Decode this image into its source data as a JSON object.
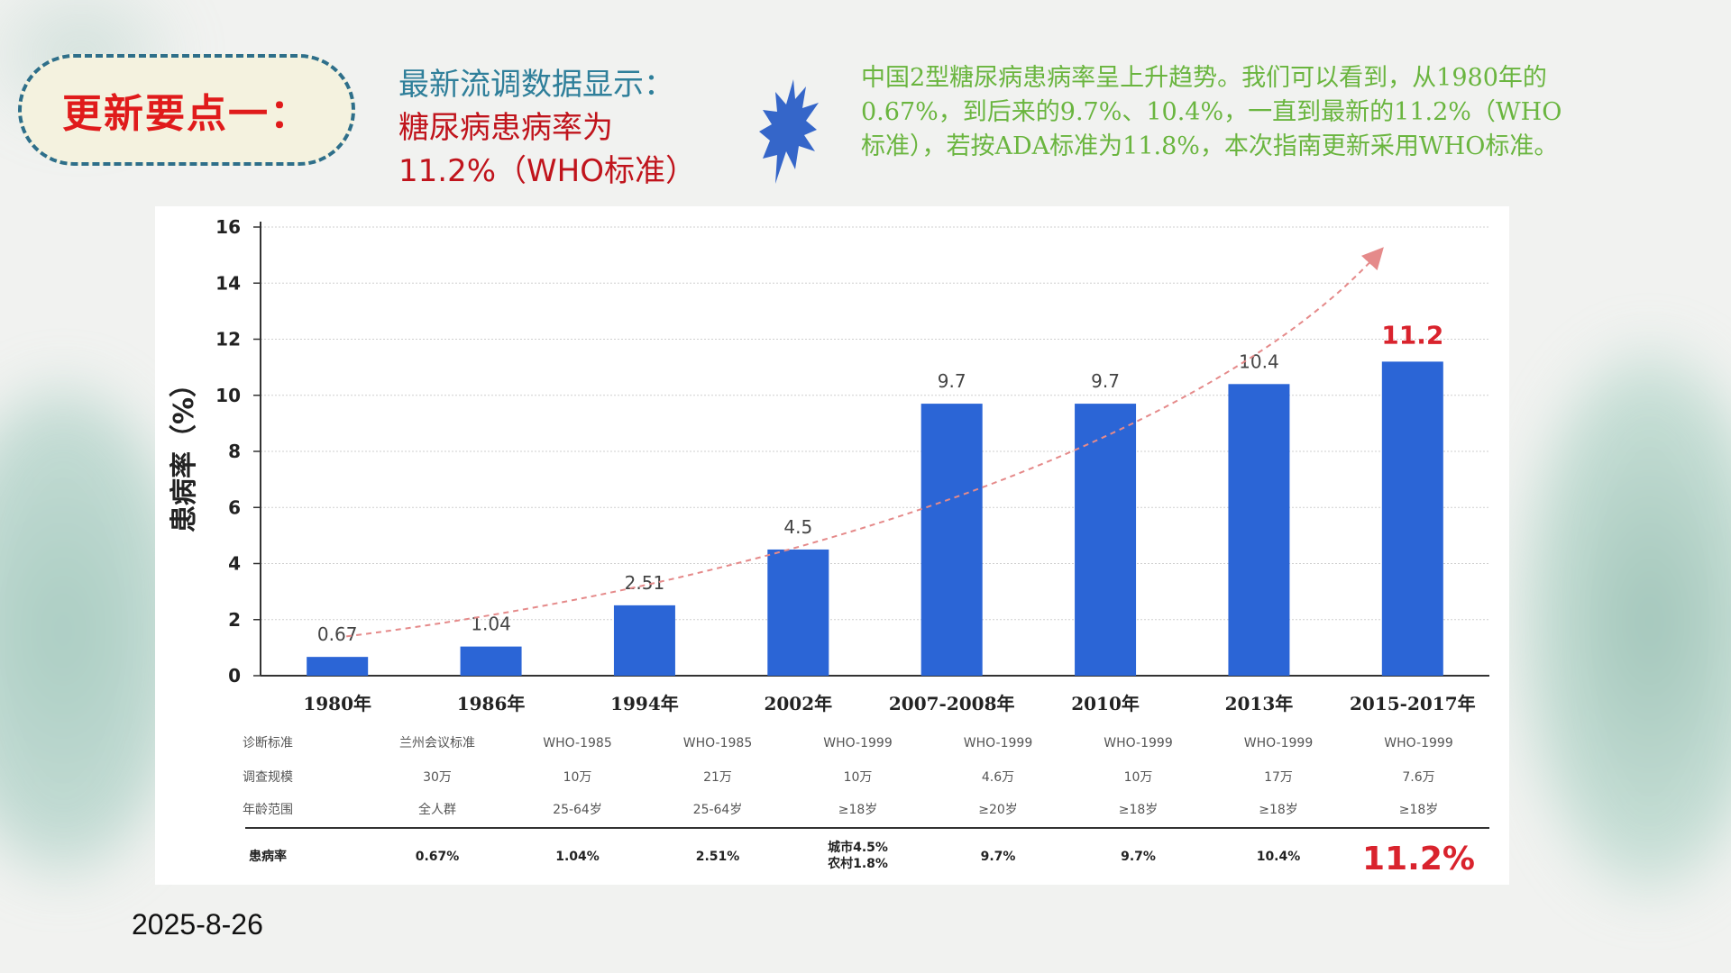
{
  "badge_text": "更新要点一：",
  "headline": {
    "line1": "最新流调数据显示：",
    "line2": "糖尿病患病率为",
    "line3": "11.2%（WHO标准）"
  },
  "description": "中国2型糖尿病患病率呈上升趋势。我们可以看到，从1980年的0.67%，到后来的9.7%、10.4%，一直到最新的11.2%（WHO标准），若按ADA标准为11.8%，本次指南更新采用WHO标准。",
  "date": "2025-8-26",
  "colors": {
    "bar": "#2b65d6",
    "highlight": "#d9232d",
    "trend": "#e58a8a"
  },
  "icons": {
    "burst": "starburst-icon"
  },
  "chart_data": {
    "type": "bar",
    "ylabel": "患病率（%）",
    "ylim": [
      0,
      16
    ],
    "yticks": [
      "0",
      "2",
      "4",
      "6",
      "8",
      "10",
      "12",
      "14",
      "16"
    ],
    "grid": true,
    "categories": [
      "1980年",
      "1986年",
      "1994年",
      "2002年",
      "2007-2008年",
      "2010年",
      "2013年",
      "2015-2017年"
    ],
    "values": [
      0.67,
      1.04,
      2.51,
      4.5,
      9.7,
      9.7,
      10.4,
      11.2
    ],
    "value_labels": [
      "0.67",
      "1.04",
      "2.51",
      "4.5",
      "9.7",
      "9.7",
      "10.4",
      "11.2"
    ],
    "highlight_index": 7,
    "trend_arrow": true,
    "table": {
      "rows": [
        {
          "label": "诊断标准",
          "cells": [
            "兰州会议标准",
            "WHO-1985",
            "WHO-1985",
            "WHO-1999",
            "WHO-1999",
            "WHO-1999",
            "WHO-1999",
            "WHO-1999"
          ]
        },
        {
          "label": "调查规模",
          "cells": [
            "30万",
            "10万",
            "21万",
            "10万",
            "4.6万",
            "10万",
            "17万",
            "7.6万"
          ]
        },
        {
          "label": "年龄范围",
          "cells": [
            "全人群",
            "25-64岁",
            "25-64岁",
            "≥18岁",
            "≥20岁",
            "≥18岁",
            "≥18岁",
            "≥18岁"
          ]
        }
      ],
      "rate_label": "患病率",
      "rate_cells": [
        "0.67%",
        "1.04%",
        "2.51%",
        "城市4.5%\n农村1.8%",
        "9.7%",
        "9.7%",
        "10.4%",
        "11.2%"
      ]
    }
  }
}
